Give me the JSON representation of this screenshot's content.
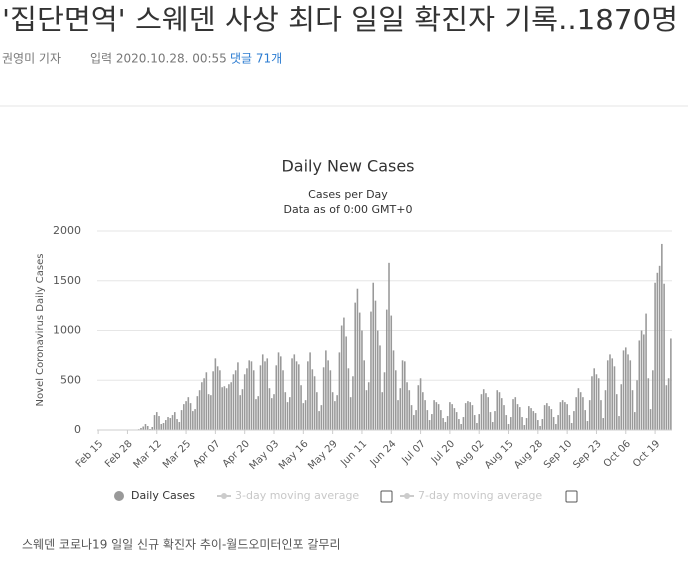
{
  "article": {
    "title": "'집단면역' 스웨덴 사상 최다 일일 확진자 기록..1870명",
    "byline": "권영미 기자",
    "published": "입력 2020.10.28. 00:55",
    "comments": "댓글 71개",
    "caption": "스웨덴 코로나19 일일 신규 확진자 추이-월드오미터인포 갈무리"
  },
  "chart_data": {
    "type": "bar",
    "title": "Daily New Cases",
    "subtitle": "Cases per Day",
    "note": "Data as of 0:00 GMT+0",
    "y_label": "Novel Coronavirus Daily Cases",
    "ylim": [
      0,
      2000
    ],
    "yticks": [
      0,
      500,
      1000,
      1500,
      2000
    ],
    "grid": true,
    "categories": [
      "Feb 15",
      null,
      null,
      null,
      null,
      null,
      null,
      null,
      null,
      null,
      null,
      null,
      null,
      "Feb 28",
      null,
      null,
      null,
      null,
      null,
      null,
      null,
      null,
      null,
      null,
      null,
      null,
      "Mar 12",
      null,
      null,
      null,
      null,
      null,
      null,
      null,
      null,
      null,
      null,
      null,
      null,
      "Mar 25",
      null,
      null,
      null,
      null,
      null,
      null,
      null,
      null,
      null,
      null,
      null,
      null,
      "Apr 07",
      null,
      null,
      null,
      null,
      null,
      null,
      null,
      null,
      null,
      null,
      null,
      null,
      "Apr 20",
      null,
      null,
      null,
      null,
      null,
      null,
      null,
      null,
      null,
      null,
      null,
      null,
      "May 03",
      null,
      null,
      null,
      null,
      null,
      null,
      null,
      null,
      null,
      null,
      null,
      null,
      "May 16",
      null,
      null,
      null,
      null,
      null,
      null,
      null,
      null,
      null,
      null,
      null,
      null,
      "May 29",
      null,
      null,
      null,
      null,
      null,
      null,
      null,
      null,
      null,
      null,
      null,
      null,
      "Jun 11",
      null,
      null,
      null,
      null,
      null,
      null,
      null,
      null,
      null,
      null,
      null,
      null,
      "Jun 24",
      null,
      null,
      null,
      null,
      null,
      null,
      null,
      null,
      null,
      null,
      null,
      null,
      "Jul 07",
      null,
      null,
      null,
      null,
      null,
      null,
      null,
      null,
      null,
      null,
      null,
      null,
      "Jul 20",
      null,
      null,
      null,
      null,
      null,
      null,
      null,
      null,
      null,
      null,
      null,
      null,
      "Aug 02",
      null,
      null,
      null,
      null,
      null,
      null,
      null,
      null,
      null,
      null,
      null,
      null,
      "Aug 15",
      null,
      null,
      null,
      null,
      null,
      null,
      null,
      null,
      null,
      null,
      null,
      null,
      "Aug 28",
      null,
      null,
      null,
      null,
      null,
      null,
      null,
      null,
      null,
      null,
      null,
      null,
      "Sep 10",
      null,
      null,
      null,
      null,
      null,
      null,
      null,
      null,
      null,
      null,
      null,
      null,
      "Sep 23",
      null,
      null,
      null,
      null,
      null,
      null,
      null,
      null,
      null,
      null,
      null,
      null,
      "Oct 06",
      null,
      null,
      null,
      null,
      null,
      null,
      null,
      null,
      null,
      null,
      null,
      null,
      "Oct 19",
      null,
      null,
      null,
      null,
      null,
      null,
      null
    ],
    "series": [
      {
        "name": "Daily Cases",
        "color": "#999999",
        "values": [
          0,
          0,
          0,
          0,
          0,
          0,
          0,
          0,
          0,
          0,
          1,
          1,
          5,
          2,
          0,
          1,
          3,
          4,
          8,
          20,
          35,
          60,
          40,
          10,
          30,
          150,
          180,
          140,
          60,
          70,
          100,
          130,
          120,
          150,
          180,
          110,
          80,
          200,
          260,
          290,
          330,
          270,
          190,
          210,
          340,
          400,
          480,
          520,
          580,
          360,
          350,
          590,
          720,
          640,
          600,
          430,
          440,
          420,
          460,
          480,
          560,
          600,
          680,
          350,
          410,
          560,
          620,
          700,
          690,
          600,
          310,
          340,
          650,
          760,
          690,
          720,
          420,
          320,
          360,
          650,
          780,
          740,
          600,
          380,
          280,
          330,
          720,
          760,
          690,
          660,
          450,
          270,
          300,
          690,
          780,
          610,
          540,
          380,
          190,
          250,
          630,
          800,
          700,
          600,
          380,
          290,
          350,
          780,
          1050,
          1130,
          940,
          620,
          330,
          540,
          1280,
          1420,
          1180,
          1000,
          700,
          400,
          480,
          1190,
          1480,
          1300,
          1000,
          850,
          380,
          580,
          1210,
          1680,
          1150,
          800,
          600,
          300,
          420,
          700,
          690,
          480,
          400,
          250,
          150,
          200,
          450,
          520,
          380,
          300,
          200,
          100,
          160,
          300,
          280,
          260,
          200,
          120,
          80,
          140,
          280,
          260,
          220,
          180,
          110,
          60,
          130,
          270,
          290,
          280,
          250,
          150,
          70,
          160,
          360,
          410,
          370,
          330,
          180,
          80,
          190,
          400,
          380,
          320,
          250,
          150,
          60,
          130,
          310,
          330,
          260,
          230,
          130,
          50,
          120,
          240,
          220,
          190,
          170,
          100,
          40,
          110,
          250,
          270,
          240,
          210,
          130,
          60,
          150,
          280,
          300,
          280,
          260,
          150,
          70,
          190,
          330,
          420,
          380,
          330,
          200,
          90,
          300,
          540,
          620,
          560,
          520,
          300,
          120,
          400,
          700,
          760,
          720,
          640,
          360,
          140,
          460,
          800,
          830,
          760,
          700,
          400,
          180,
          500,
          900,
          1000,
          960,
          1170,
          520,
          210,
          600,
          1480,
          1580,
          1650,
          1870,
          1470,
          450,
          520,
          920
        ]
      }
    ],
    "inactive_series": [
      {
        "name": "3-day moving average"
      },
      {
        "name": "7-day moving average"
      }
    ]
  }
}
